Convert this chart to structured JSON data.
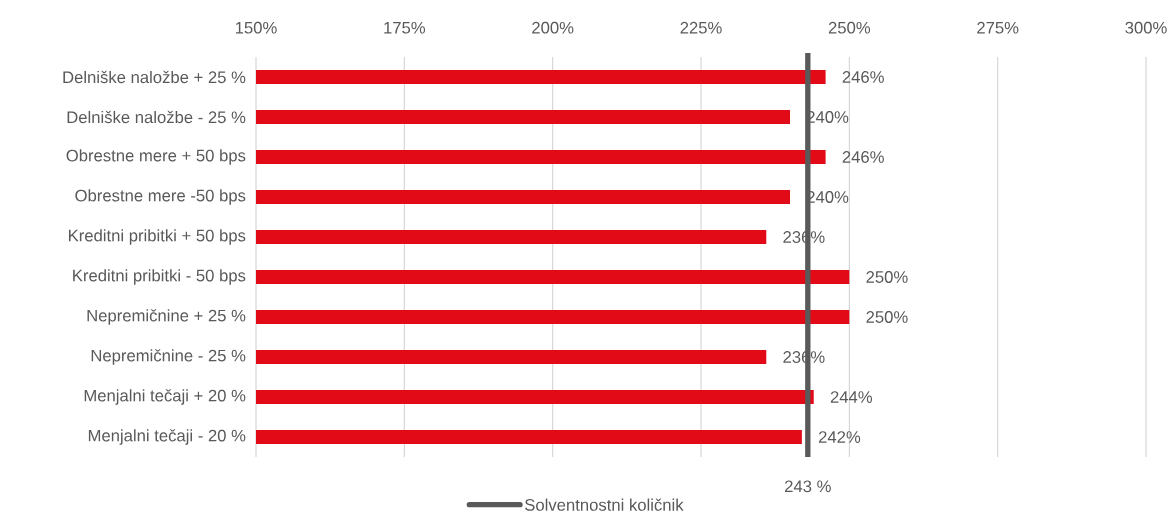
{
  "chart_data": {
    "type": "bar",
    "orientation": "horizontal",
    "categories": [
      "Delniške naložbe + 25 %",
      "Delniške naložbe - 25 %",
      "Obrestne mere + 50 bps",
      "Obrestne mere -50 bps",
      "Kreditni pribitki + 50 bps",
      "Kreditni pribitki - 50 bps",
      "Nepremičnine + 25 %",
      "Nepremičnine - 25 %",
      "Menjalni tečaji + 20 %",
      "Menjalni tečaji - 20 %"
    ],
    "values": [
      246,
      240,
      246,
      240,
      236,
      250,
      250,
      236,
      244,
      242
    ],
    "value_labels": [
      "246%",
      "240%",
      "246%",
      "240%",
      "236%",
      "250%",
      "250%",
      "236%",
      "244%",
      "242%"
    ],
    "color": "#e20a16",
    "xlim": [
      150,
      300
    ],
    "xticks": [
      {
        "value": 150,
        "label": "150%"
      },
      {
        "value": 175,
        "label": "175%"
      },
      {
        "value": 200,
        "label": "200%"
      },
      {
        "value": 225,
        "label": "225%"
      },
      {
        "value": 250,
        "label": "250%"
      },
      {
        "value": 275,
        "label": "275%"
      },
      {
        "value": 300,
        "label": "300%"
      }
    ],
    "grid": "x",
    "ref_lines": [
      {
        "axis": "x",
        "value": 243,
        "label": "243 %",
        "color": "#595959"
      }
    ],
    "annotations": [
      "Solventnostni količnik"
    ]
  }
}
